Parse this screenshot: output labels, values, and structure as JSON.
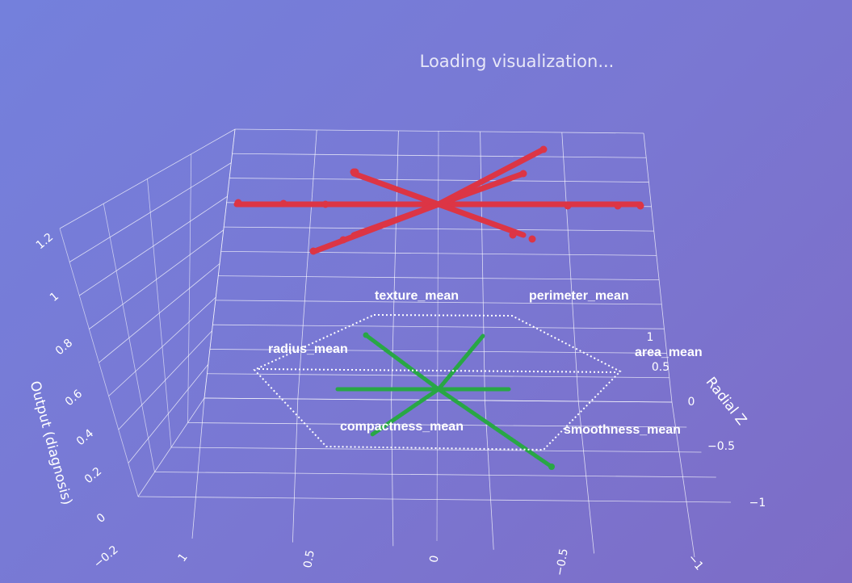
{
  "status": {
    "loading_text": "Loading visualization..."
  },
  "chart_data": {
    "type": "scatter3d",
    "axes": {
      "x": {
        "title": "",
        "ticks": [
          "1",
          "0.5",
          "0",
          "−0.5",
          "−1"
        ]
      },
      "y": {
        "title": "Radial Z",
        "ticks": [
          "1",
          "0.5",
          "0",
          "−0.5",
          "−1"
        ]
      },
      "z": {
        "title": "Output (diagnosis)",
        "ticks": [
          "−0.2",
          "0",
          "0.2",
          "0.4",
          "0.6",
          "0.8",
          "1",
          "1.2"
        ]
      }
    },
    "features": [
      "radius_mean",
      "texture_mean",
      "perimeter_mean",
      "area_mean",
      "smoothness_mean",
      "compactness_mean"
    ],
    "series": [
      {
        "color": "#dc3545",
        "output": 1
      },
      {
        "color": "#28a745",
        "output": 0
      }
    ],
    "grid": true,
    "legend": "none"
  }
}
